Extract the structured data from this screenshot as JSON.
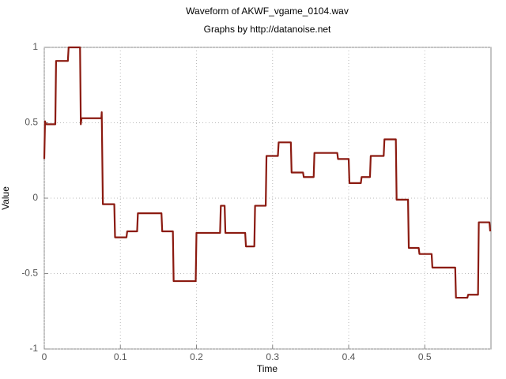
{
  "chart_data": {
    "type": "line",
    "title": "Waveform of AKWF_vgame_0104.wav",
    "subtitle": "Graphs by http://datanoise.net",
    "x_label": "Time",
    "y_label": "Value",
    "x": [
      0,
      0.001,
      0.002,
      0.0145,
      0.0155,
      0.031,
      0.032,
      0.047,
      0.048,
      0.049,
      0.075,
      0.0755,
      0.077,
      0.092,
      0.093,
      0.108,
      0.109,
      0.122,
      0.123,
      0.154,
      0.155,
      0.169,
      0.17,
      0.199,
      0.2,
      0.231,
      0.232,
      0.237,
      0.238,
      0.264,
      0.265,
      0.276,
      0.277,
      0.291,
      0.292,
      0.307,
      0.308,
      0.324,
      0.325,
      0.34,
      0.341,
      0.354,
      0.355,
      0.385,
      0.386,
      0.4,
      0.401,
      0.416,
      0.417,
      0.428,
      0.429,
      0.446,
      0.447,
      0.462,
      0.463,
      0.478,
      0.479,
      0.492,
      0.493,
      0.509,
      0.51,
      0.54,
      0.541,
      0.556,
      0.557,
      0.57,
      0.571,
      0.585,
      0.586
    ],
    "series": [
      {
        "color": "#8b1a10",
        "values": [
          0.26,
          0.51,
          0.49,
          0.49,
          0.91,
          0.91,
          1.0,
          1.0,
          0.49,
          0.53,
          0.53,
          0.57,
          -0.04,
          -0.04,
          -0.26,
          -0.26,
          -0.22,
          -0.22,
          -0.1,
          -0.1,
          -0.22,
          -0.22,
          -0.55,
          -0.55,
          -0.23,
          -0.23,
          -0.05,
          -0.05,
          -0.23,
          -0.23,
          -0.32,
          -0.32,
          -0.05,
          -0.05,
          0.28,
          0.28,
          0.37,
          0.37,
          0.17,
          0.17,
          0.14,
          0.14,
          0.3,
          0.3,
          0.26,
          0.26,
          0.1,
          0.1,
          0.14,
          0.14,
          0.28,
          0.28,
          0.39,
          0.39,
          -0.01,
          -0.01,
          -0.33,
          -0.33,
          -0.37,
          -0.37,
          -0.46,
          -0.46,
          -0.66,
          -0.66,
          -0.64,
          -0.64,
          -0.16,
          -0.16,
          -0.22
        ]
      }
    ],
    "xlim": [
      0,
      0.587
    ],
    "xticks": [
      0,
      0.1,
      0.2,
      0.3,
      0.4,
      0.5
    ],
    "ylim": [
      -1,
      1
    ],
    "yticks": [
      -1,
      -0.5,
      0,
      0.5,
      1
    ],
    "grid": true
  }
}
